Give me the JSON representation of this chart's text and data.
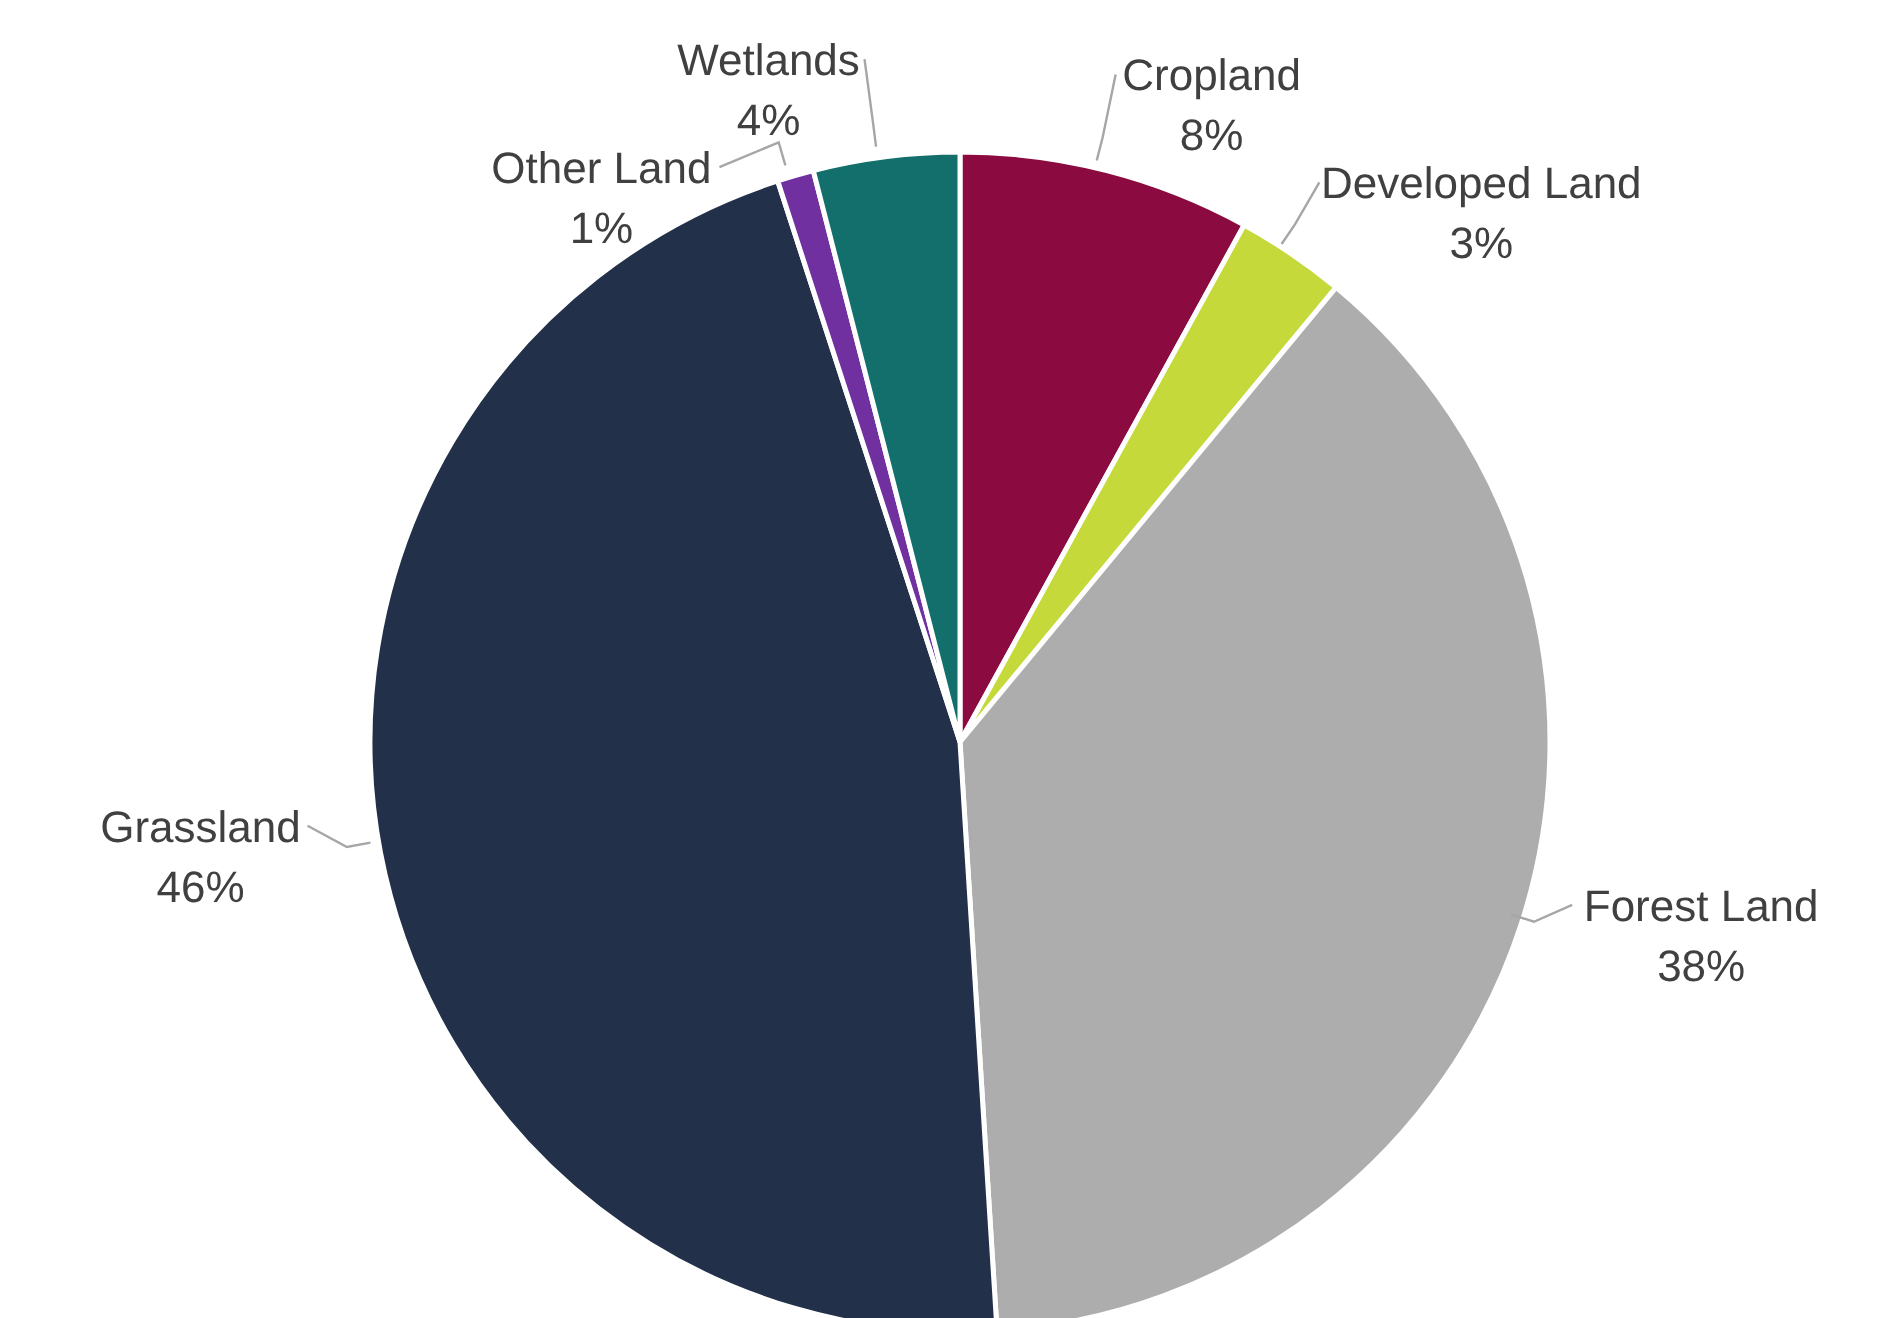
{
  "chart_data": {
    "type": "pie",
    "categories": [
      "Cropland",
      "Developed Land",
      "Forest Land",
      "Grassland",
      "Other Land",
      "Wetlands"
    ],
    "values": [
      8,
      3,
      38,
      46,
      1,
      4
    ],
    "value_labels": [
      "8%",
      "3%",
      "38%",
      "46%",
      "1%",
      "4%"
    ],
    "colors": [
      "#8b0a3f",
      "#c5d93b",
      "#adadad",
      "#223049",
      "#7030a0",
      "#136f6c"
    ]
  }
}
